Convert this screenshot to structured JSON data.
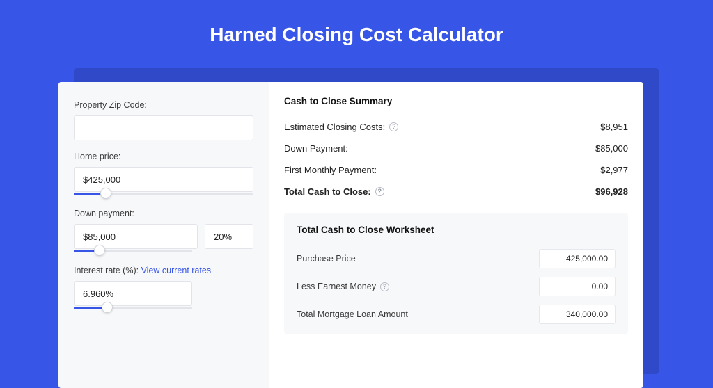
{
  "page": {
    "title": "Harned Closing Cost Calculator",
    "background_color": "#3755e6",
    "shadow_color": "#2f49c8",
    "card_bg": "#ffffff",
    "panel_bg": "#f7f8fa",
    "accent": "#3755e6",
    "border_color": "#e2e4ea",
    "text_color": "#222222",
    "muted_text": "#3a3a3a"
  },
  "inputs": {
    "zip": {
      "label": "Property Zip Code:",
      "value": ""
    },
    "home_price": {
      "label": "Home price:",
      "value": "$425,000",
      "slider_pct": 18
    },
    "down_payment": {
      "label": "Down payment:",
      "value": "$85,000",
      "pct": "20%",
      "slider_pct": 22
    },
    "interest_rate": {
      "label": "Interest rate (%): ",
      "link_text": "View current rates",
      "value": "6.960%",
      "slider_pct": 28
    }
  },
  "summary": {
    "title": "Cash to Close Summary",
    "rows": [
      {
        "label": "Estimated Closing Costs:",
        "help": true,
        "value": "$8,951",
        "bold": false
      },
      {
        "label": "Down Payment:",
        "help": false,
        "value": "$85,000",
        "bold": false
      },
      {
        "label": "First Monthly Payment:",
        "help": false,
        "value": "$2,977",
        "bold": false
      },
      {
        "label": "Total Cash to Close:",
        "help": true,
        "value": "$96,928",
        "bold": true
      }
    ]
  },
  "worksheet": {
    "title": "Total Cash to Close Worksheet",
    "rows": [
      {
        "label": "Purchase Price",
        "help": false,
        "value": "425,000.00"
      },
      {
        "label": "Less Earnest Money",
        "help": true,
        "value": "0.00"
      },
      {
        "label": "Total Mortgage Loan Amount",
        "help": false,
        "value": "340,000.00"
      }
    ]
  }
}
